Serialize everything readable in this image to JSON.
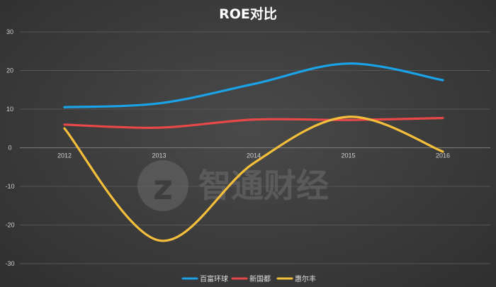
{
  "chart_data": {
    "type": "line",
    "title": "ROE对比",
    "categories": [
      "2012",
      "2013",
      "2014",
      "2015",
      "2016"
    ],
    "series": [
      {
        "name": "百富环球",
        "color": "#1aa3e8",
        "values": [
          10.5,
          11.5,
          16.5,
          21.8,
          17.5
        ]
      },
      {
        "name": "新国都",
        "color": "#e84848",
        "values": [
          6.0,
          5.2,
          7.3,
          7.2,
          7.7
        ]
      },
      {
        "name": "惠尔丰",
        "color": "#f6bf3b",
        "values": [
          5.0,
          -24.0,
          -4.0,
          8.0,
          -1.0
        ]
      }
    ],
    "ylim": [
      -30,
      30
    ],
    "yticks": [
      -30,
      -20,
      -10,
      0,
      10,
      20,
      30
    ],
    "grid": true,
    "legend": "bottom",
    "smooth": true
  },
  "watermark": {
    "text": "智通财经",
    "logo_glyph": "z"
  }
}
